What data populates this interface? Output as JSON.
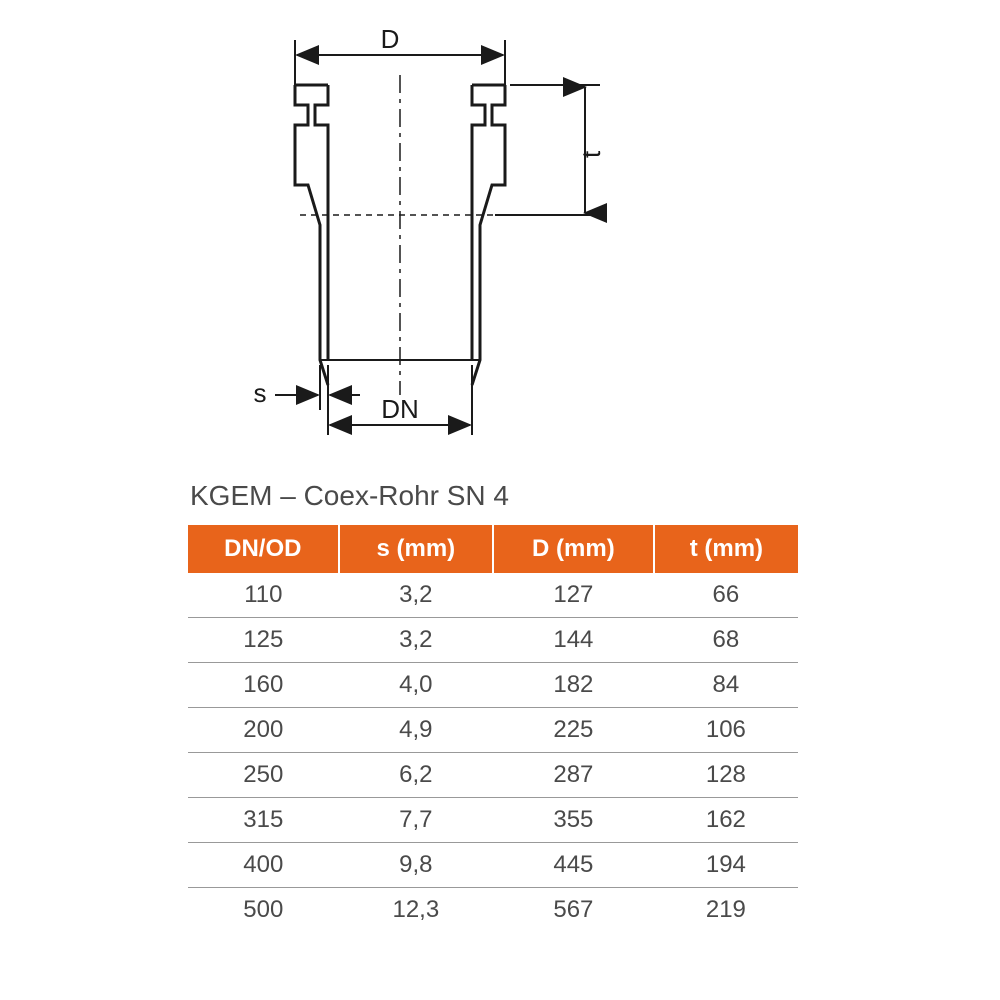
{
  "diagram": {
    "labels": {
      "D": "D",
      "t": "t",
      "s": "s",
      "DN": "DN"
    },
    "stroke_color": "#1a1a1a",
    "stroke_width_main": 3,
    "stroke_width_dim": 2
  },
  "title": "KGEM – Coex-Rohr SN 4",
  "table": {
    "header_bg": "#e8641b",
    "header_text_color": "#ffffff",
    "row_text_color": "#4a4a4a",
    "row_border_color": "#999999",
    "font_size_header": 24,
    "font_size_body": 24,
    "columns": [
      "DN/OD",
      "s (mm)",
      "D (mm)",
      "t (mm)"
    ],
    "rows": [
      [
        "110",
        "3,2",
        "127",
        "66"
      ],
      [
        "125",
        "3,2",
        "144",
        "68"
      ],
      [
        "160",
        "4,0",
        "182",
        "84"
      ],
      [
        "200",
        "4,9",
        "225",
        "106"
      ],
      [
        "250",
        "6,2",
        "287",
        "128"
      ],
      [
        "315",
        "7,7",
        "355",
        "162"
      ],
      [
        "400",
        "9,8",
        "445",
        "194"
      ],
      [
        "500",
        "12,3",
        "567",
        "219"
      ]
    ]
  }
}
